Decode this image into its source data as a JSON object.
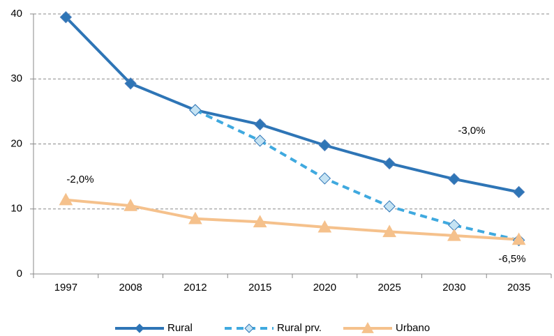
{
  "chart_data": {
    "type": "line",
    "categories": [
      "1997",
      "2008",
      "2012",
      "2015",
      "2020",
      "2025",
      "2030",
      "2035"
    ],
    "series": [
      {
        "name": "Rural",
        "color": "#2e75b6",
        "marker": "diamond",
        "dashed": false,
        "values": [
          39.5,
          29.3,
          25.2,
          23,
          19.8,
          17,
          14.6,
          12.6
        ]
      },
      {
        "name": "Rural prv.",
        "color": "#3fa9df",
        "marker": "diamond",
        "dashed": true,
        "values": [
          null,
          null,
          25.2,
          20.5,
          14.7,
          10.4,
          7.5,
          5.2
        ]
      },
      {
        "name": "Urbano",
        "color": "#f5c18c",
        "marker": "triangle",
        "dashed": false,
        "values": [
          11.4,
          10.5,
          8.5,
          8,
          7.2,
          6.5,
          5.9,
          5.3
        ]
      }
    ],
    "ylim": [
      0,
      40
    ],
    "yticks": [
      0,
      10,
      20,
      30,
      40
    ],
    "grid": true,
    "annotations": [
      "-2,0%",
      "-3,0%",
      "-6,5%"
    ]
  }
}
